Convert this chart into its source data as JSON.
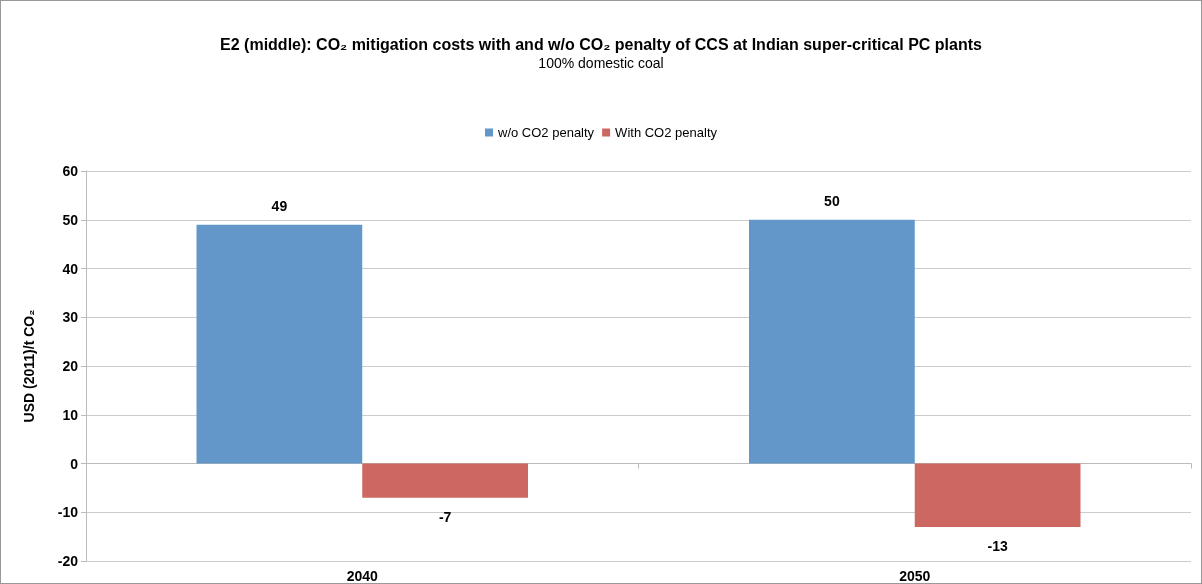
{
  "chart_data": {
    "type": "bar",
    "title": "E2 (middle): CO₂ mitigation costs with and w/o CO₂ penalty of CCS at Indian super-critical PC plants",
    "subtitle": "100% domestic coal",
    "ylabel": "USD (2011)/t CO₂",
    "categories": [
      "2040",
      "2050"
    ],
    "series": [
      {
        "name": "w/o CO2 penalty",
        "color": "#6397c9",
        "values": [
          49,
          50
        ]
      },
      {
        "name": "With CO2 penalty",
        "color": "#cc6761",
        "values": [
          -7,
          -13
        ]
      }
    ],
    "ylim": [
      -20,
      60
    ],
    "yticks": [
      -20,
      -10,
      0,
      10,
      20,
      30,
      40,
      50,
      60
    ],
    "grid": "y",
    "legend": "top",
    "data_labels": true
  }
}
